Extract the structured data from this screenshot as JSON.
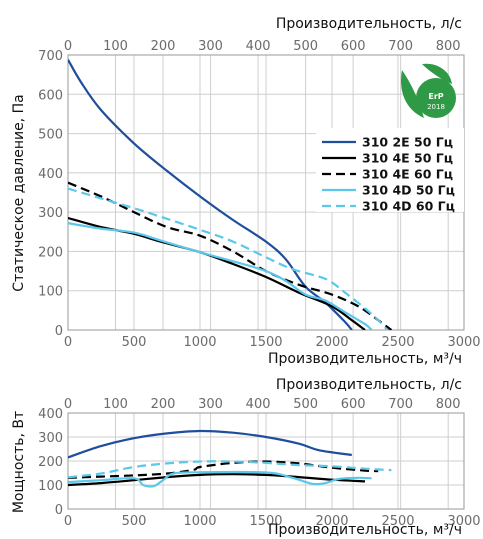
{
  "chart_data": [
    {
      "type": "line",
      "xlabel": "Производительность, м³/ч",
      "ylabel": "Статическое давление, Па",
      "x2label": "Производительность, л/с",
      "xlim": [
        0,
        3000
      ],
      "ylim": [
        0,
        700
      ],
      "x2lim": [
        0,
        833.3
      ],
      "xticks": [
        "0",
        "500",
        "1000",
        "1500",
        "2000",
        "2500",
        "3000"
      ],
      "yticks": [
        "0",
        "100",
        "200",
        "300",
        "400",
        "500",
        "600",
        "700"
      ],
      "x2ticks": [
        "0",
        "100",
        "200",
        "300",
        "400",
        "500",
        "600",
        "700",
        "800"
      ],
      "grid": true,
      "legend_position": "right",
      "series": [
        {
          "name": "310 2E 50 Гц",
          "color": "#1f4e9c",
          "dash": "solid",
          "points": [
            [
              0,
              688
            ],
            [
              100,
              630
            ],
            [
              250,
              560
            ],
            [
              500,
              475
            ],
            [
              750,
              405
            ],
            [
              1000,
              340
            ],
            [
              1250,
              280
            ],
            [
              1500,
              225
            ],
            [
              1650,
              180
            ],
            [
              1800,
              110
            ],
            [
              1950,
              70
            ],
            [
              2100,
              20
            ],
            [
              2150,
              0
            ]
          ]
        },
        {
          "name": "310 4E 50 Гц",
          "color": "#000000",
          "dash": "solid",
          "points": [
            [
              0,
              285
            ],
            [
              250,
              262
            ],
            [
              500,
              245
            ],
            [
              700,
              225
            ],
            [
              1000,
              198
            ],
            [
              1250,
              168
            ],
            [
              1500,
              135
            ],
            [
              1750,
              95
            ],
            [
              2000,
              60
            ],
            [
              2150,
              25
            ],
            [
              2250,
              0
            ]
          ]
        },
        {
          "name": "310 4E 60 Гц",
          "color": "#000000",
          "dash": "dashed",
          "points": [
            [
              0,
              375
            ],
            [
              250,
              340
            ],
            [
              500,
              300
            ],
            [
              750,
              262
            ],
            [
              1000,
              240
            ],
            [
              1250,
              200
            ],
            [
              1500,
              150
            ],
            [
              1750,
              115
            ],
            [
              2000,
              90
            ],
            [
              2200,
              60
            ],
            [
              2350,
              25
            ],
            [
              2450,
              0
            ]
          ]
        },
        {
          "name": "310 4D 50 Гц",
          "color": "#5bc8ea",
          "dash": "solid",
          "points": [
            [
              0,
              272
            ],
            [
              250,
              258
            ],
            [
              500,
              248
            ],
            [
              700,
              228
            ],
            [
              1000,
              198
            ],
            [
              1250,
              175
            ],
            [
              1500,
              150
            ],
            [
              1650,
              125
            ],
            [
              1800,
              90
            ],
            [
              1950,
              75
            ],
            [
              2100,
              45
            ],
            [
              2250,
              15
            ],
            [
              2300,
              0
            ]
          ]
        },
        {
          "name": "310 4D 60 Гц",
          "color": "#5bc8ea",
          "dash": "dashed",
          "points": [
            [
              0,
              360
            ],
            [
              250,
              335
            ],
            [
              500,
              310
            ],
            [
              750,
              283
            ],
            [
              1000,
              255
            ],
            [
              1250,
              225
            ],
            [
              1500,
              185
            ],
            [
              1700,
              155
            ],
            [
              1950,
              130
            ],
            [
              2100,
              95
            ],
            [
              2250,
              55
            ],
            [
              2350,
              25
            ],
            [
              2420,
              0
            ]
          ]
        }
      ]
    },
    {
      "type": "line",
      "xlabel": "Производительность, м³/ч",
      "ylabel": "Мощность, Вт",
      "x2label": "Производительность, л/с",
      "xlim": [
        0,
        3000
      ],
      "ylim": [
        0,
        400
      ],
      "x2lim": [
        0,
        833.3
      ],
      "xticks": [
        "0",
        "500",
        "1000",
        "1500",
        "2000",
        "2500",
        "3000"
      ],
      "yticks": [
        "0",
        "100",
        "200",
        "300",
        "400"
      ],
      "x2ticks": [
        "0",
        "100",
        "200",
        "300",
        "400",
        "500",
        "600",
        "700",
        "800"
      ],
      "grid": true,
      "series": [
        {
          "name": "310 2E 50 Гц",
          "color": "#1f4e9c",
          "dash": "solid",
          "points": [
            [
              0,
              215
            ],
            [
              250,
              262
            ],
            [
              500,
              295
            ],
            [
              750,
              315
            ],
            [
              1000,
              325
            ],
            [
              1250,
              318
            ],
            [
              1500,
              300
            ],
            [
              1750,
              272
            ],
            [
              1900,
              245
            ],
            [
              2150,
              225
            ]
          ]
        },
        {
          "name": "310 4E 50 Гц",
          "color": "#000000",
          "dash": "solid",
          "points": [
            [
              0,
              100
            ],
            [
              250,
              108
            ],
            [
              500,
              120
            ],
            [
              750,
              133
            ],
            [
              1000,
              142
            ],
            [
              1250,
              145
            ],
            [
              1500,
              142
            ],
            [
              1750,
              133
            ],
            [
              2000,
              122
            ],
            [
              2250,
              115
            ]
          ]
        },
        {
          "name": "310 4E 60 Гц",
          "color": "#000000",
          "dash": "dashed",
          "points": [
            [
              0,
              130
            ],
            [
              250,
              135
            ],
            [
              500,
              140
            ],
            [
              750,
              148
            ],
            [
              950,
              163
            ],
            [
              1000,
              175
            ],
            [
              1250,
              192
            ],
            [
              1500,
              198
            ],
            [
              1750,
              190
            ],
            [
              2000,
              172
            ],
            [
              2250,
              160
            ],
            [
              2350,
              158
            ]
          ]
        },
        {
          "name": "310 4D 50 Гц",
          "color": "#5bc8ea",
          "dash": "solid",
          "points": [
            [
              0,
              112
            ],
            [
              250,
              120
            ],
            [
              500,
              128
            ],
            [
              570,
              100
            ],
            [
              650,
              95
            ],
            [
              720,
              120
            ],
            [
              800,
              148
            ],
            [
              1000,
              153
            ],
            [
              1500,
              152
            ],
            [
              1700,
              130
            ],
            [
              1850,
              105
            ],
            [
              1950,
              108
            ],
            [
              2050,
              125
            ],
            [
              2200,
              130
            ],
            [
              2300,
              128
            ]
          ]
        },
        {
          "name": "310 4D 60 Гц",
          "color": "#5bc8ea",
          "dash": "dashed",
          "points": [
            [
              0,
              132
            ],
            [
              250,
              148
            ],
            [
              500,
              175
            ],
            [
              750,
              190
            ],
            [
              1000,
              198
            ],
            [
              1250,
              198
            ],
            [
              1500,
              192
            ],
            [
              1750,
              183
            ],
            [
              2000,
              178
            ],
            [
              2250,
              168
            ],
            [
              2450,
              162
            ]
          ]
        }
      ]
    }
  ],
  "logo": {
    "line1": "ErP",
    "line2": "2018",
    "color": "#2f9a46"
  }
}
